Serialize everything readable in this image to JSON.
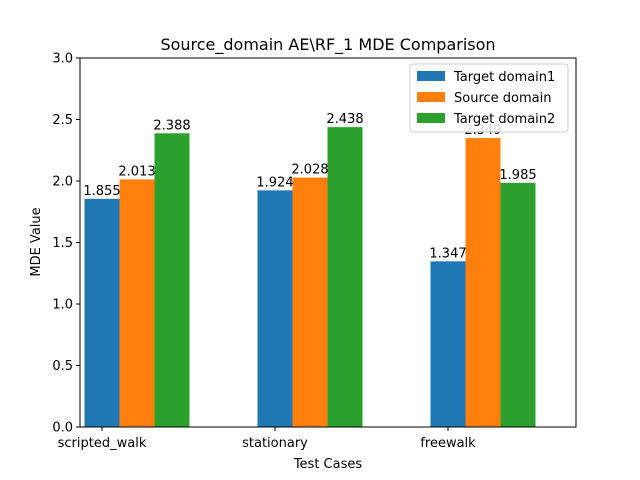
{
  "chart_data": {
    "type": "bar",
    "title": "Source_domain AE\\RF_1 MDE Comparison",
    "xlabel": "Test Cases",
    "ylabel": "MDE Value",
    "categories": [
      "scripted_walk",
      "stationary",
      "freewalk"
    ],
    "ylim": [
      0,
      3.0
    ],
    "yticks": [
      "0.0",
      "0.5",
      "1.0",
      "1.5",
      "2.0",
      "2.5",
      "3.0"
    ],
    "grid": false,
    "legend_position": "top-right",
    "series": [
      {
        "name": "Target domain1",
        "color": "#1f77b4",
        "values": [
          1.855,
          1.924,
          1.347
        ],
        "labels": [
          "1.855",
          "1.924",
          "1.347"
        ]
      },
      {
        "name": "Source domain",
        "color": "#ff7f0e",
        "values": [
          2.013,
          2.028,
          2.349
        ],
        "labels": [
          "2.013",
          "2.028",
          "2.349"
        ]
      },
      {
        "name": "Target domain2",
        "color": "#2ca02c",
        "values": [
          2.388,
          2.438,
          1.985
        ],
        "labels": [
          "2.388",
          "2.438",
          "1.985"
        ]
      }
    ]
  }
}
